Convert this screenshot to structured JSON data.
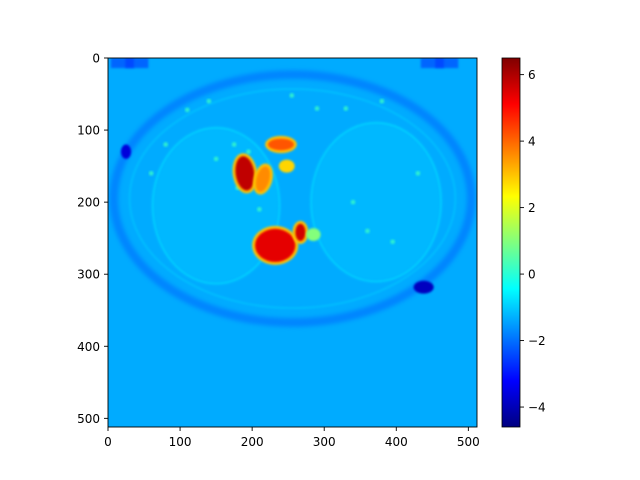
{
  "chart_data": {
    "type": "heatmap",
    "title": "",
    "xlabel": "",
    "ylabel": "",
    "image_shape": [
      512,
      512
    ],
    "xlim": [
      0,
      512
    ],
    "ylim": [
      512,
      0
    ],
    "x_ticks": [
      0,
      100,
      200,
      300,
      400,
      500
    ],
    "y_ticks": [
      0,
      100,
      200,
      300,
      400,
      500
    ],
    "colormap": "jet",
    "colorbar": {
      "range": [
        -4.6,
        6.5
      ],
      "ticks": [
        -4,
        -2,
        0,
        2,
        4,
        6
      ],
      "tick_labels": [
        "−4",
        "−2",
        "0",
        "2",
        "4",
        "6"
      ]
    },
    "background_value": -1.35,
    "grid": false,
    "features": [
      {
        "region": "body outline ring",
        "value": -1.9
      },
      {
        "region": "inner lung fields",
        "value": -1.15
      },
      {
        "region": "cardiac blob left",
        "center": [
          190,
          160
        ],
        "value": 5.8
      },
      {
        "region": "cardiac blob center",
        "center": [
          215,
          168
        ],
        "value": 3.6
      },
      {
        "region": "upper vessel",
        "center": [
          240,
          120
        ],
        "value": 4.2
      },
      {
        "region": "small upper vessel",
        "center": [
          248,
          150
        ],
        "value": 2.8
      },
      {
        "region": "aorta blob",
        "center": [
          232,
          260
        ],
        "value": 5.4
      },
      {
        "region": "small right blob",
        "center": [
          267,
          242
        ],
        "value": 5.6
      },
      {
        "region": "side green blob",
        "center": [
          285,
          245
        ],
        "value": 1.0
      },
      {
        "region": "dark spot left",
        "center": [
          25,
          130
        ],
        "value": -3.6
      },
      {
        "region": "dark spot right",
        "center": [
          438,
          318
        ],
        "value": -3.9
      }
    ]
  }
}
